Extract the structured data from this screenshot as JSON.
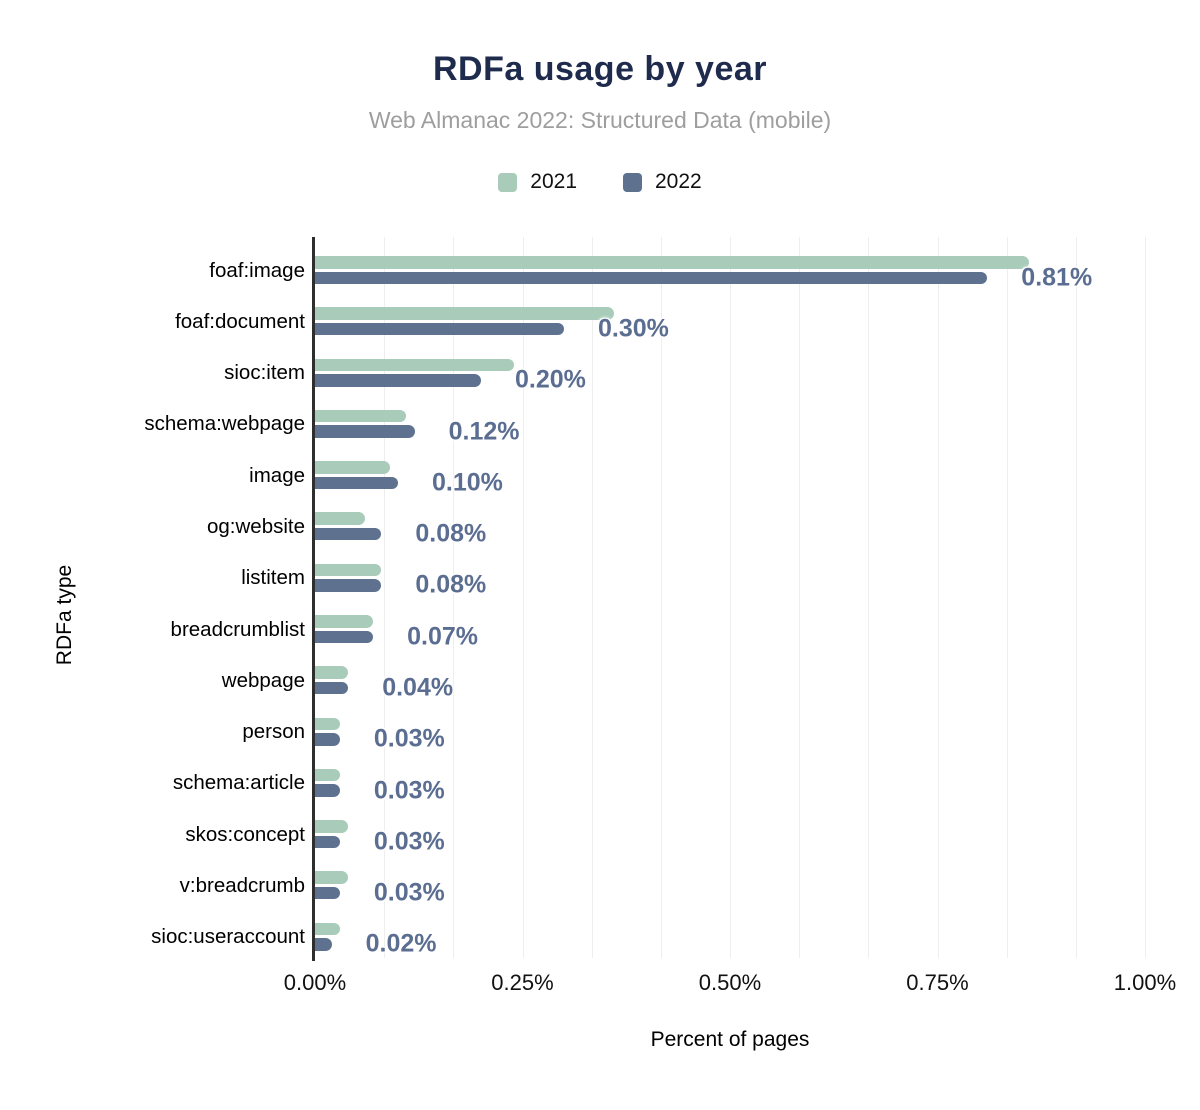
{
  "header": {
    "title": "RDFa usage by year",
    "subtitle": "Web Almanac 2022: Structured Data (mobile)"
  },
  "legend": [
    {
      "label": "2021",
      "color": "#a8ccb9"
    },
    {
      "label": "2022",
      "color": "#5e7290"
    }
  ],
  "chart_data": {
    "type": "bar",
    "orientation": "horizontal",
    "title": "RDFa usage by year",
    "subtitle": "Web Almanac 2022: Structured Data (mobile)",
    "xlabel": "Percent of pages",
    "ylabel": "RDFa type",
    "xlim": [
      0,
      1.0
    ],
    "x_ticks": [
      "0.00%",
      "0.25%",
      "0.50%",
      "0.75%",
      "1.00%"
    ],
    "grid": "vertical minor gridlines, 12 per 1.00%",
    "legend_position": "top-center",
    "categories": [
      "foaf:image",
      "foaf:document",
      "sioc:item",
      "schema:webpage",
      "image",
      "og:website",
      "listitem",
      "breadcrumblist",
      "webpage",
      "person",
      "schema:article",
      "skos:concept",
      "v:breadcrumb",
      "sioc:useraccount"
    ],
    "series": [
      {
        "name": "2021",
        "color": "#a8ccb9",
        "values": [
          0.86,
          0.36,
          0.24,
          0.11,
          0.09,
          0.06,
          0.08,
          0.07,
          0.04,
          0.03,
          0.03,
          0.04,
          0.04,
          0.03
        ]
      },
      {
        "name": "2022",
        "color": "#5e7290",
        "values": [
          0.81,
          0.3,
          0.2,
          0.12,
          0.1,
          0.08,
          0.08,
          0.07,
          0.04,
          0.03,
          0.03,
          0.03,
          0.03,
          0.02
        ]
      }
    ],
    "value_labels": [
      "0.81%",
      "0.30%",
      "0.20%",
      "0.12%",
      "0.10%",
      "0.08%",
      "0.08%",
      "0.07%",
      "0.04%",
      "0.03%",
      "0.03%",
      "0.03%",
      "0.03%",
      "0.02%"
    ],
    "value_label_color": "#5b6e91"
  }
}
